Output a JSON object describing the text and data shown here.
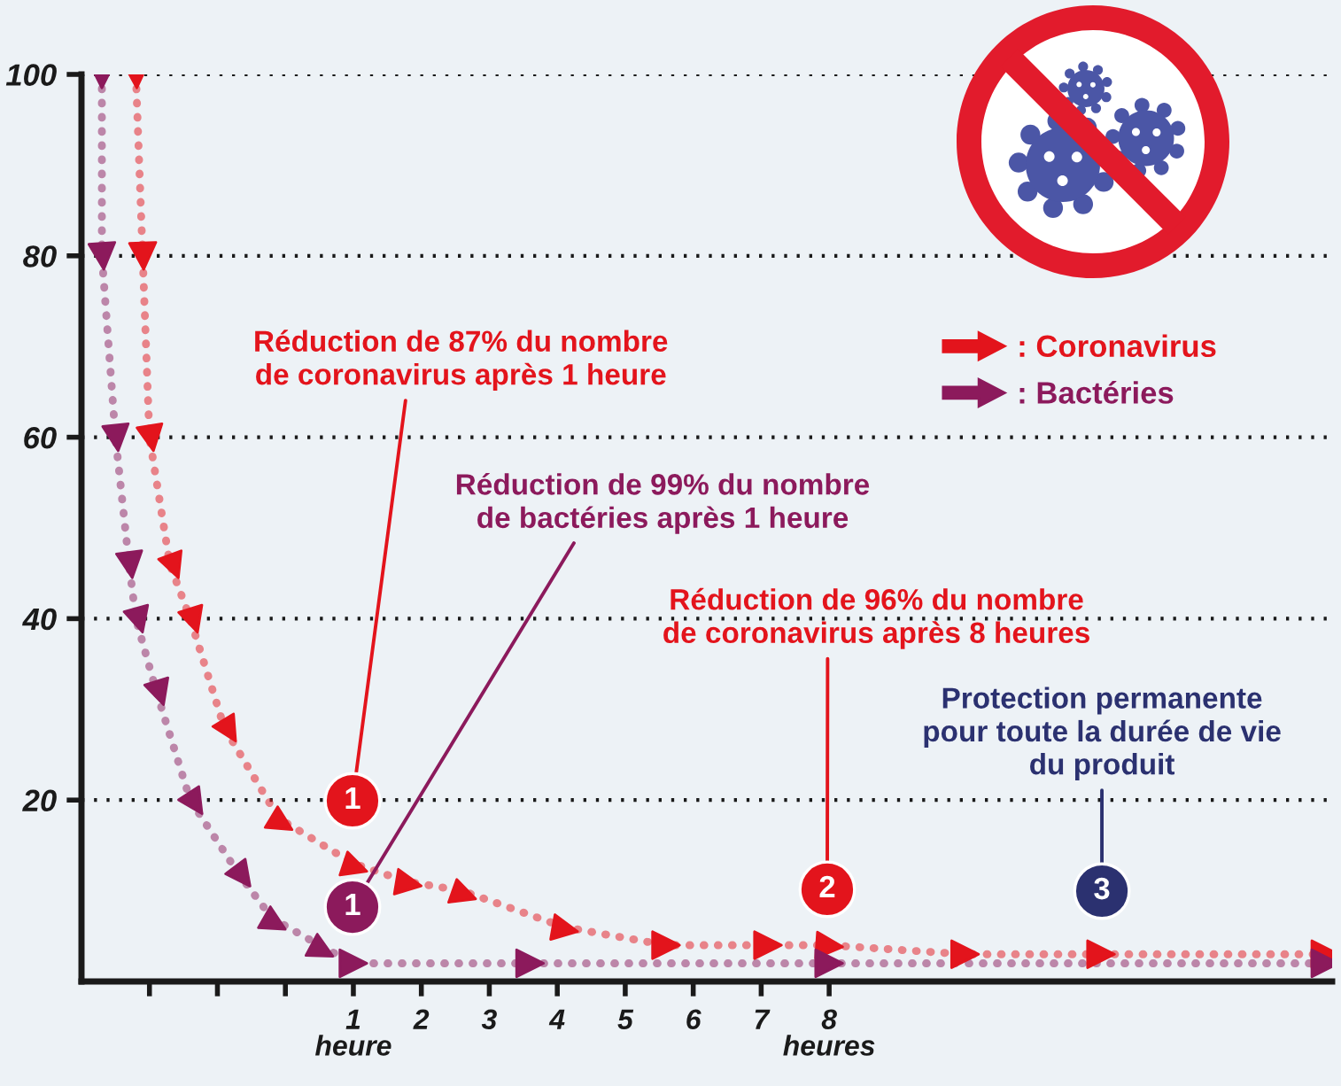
{
  "chart_data": {
    "type": "line",
    "series": [
      {
        "name": ": Coronavirus",
        "color": "#e3141c",
        "x": [
          -2.2,
          -2.1,
          -2.0,
          -1.7,
          -1.4,
          -0.9,
          -0.1,
          1,
          1.8,
          2.6,
          4.1,
          5.6,
          7.1,
          8,
          10,
          12,
          15.3
        ],
        "values": [
          100,
          80,
          60,
          46,
          40,
          28,
          18,
          13,
          11,
          10,
          6,
          4,
          4,
          4,
          3,
          3,
          3
        ]
      },
      {
        "name": ": Bactéries",
        "color": "#8c1a5c",
        "x": [
          -2.7,
          -2.7,
          -2.5,
          -2.3,
          -2.2,
          -1.9,
          -1.4,
          -0.7,
          -0.2,
          0.5,
          1,
          3.6,
          8,
          15.3
        ],
        "values": [
          100,
          80,
          60,
          46,
          40,
          32,
          20,
          12,
          7,
          4,
          2,
          2,
          2,
          2
        ]
      }
    ],
    "xlim": [
      -3,
      15.4
    ],
    "xticks": [
      {
        "value": -2,
        "label": null
      },
      {
        "value": -1,
        "label": null
      },
      {
        "value": 0,
        "label": null
      },
      {
        "value": 1,
        "label": "1\nheure"
      },
      2,
      3,
      4,
      5,
      6,
      7,
      {
        "value": 8,
        "label": "8\nheures"
      }
    ],
    "ylim": [
      0,
      100
    ],
    "yticks": [
      20,
      40,
      60,
      80,
      100
    ],
    "grid": "y",
    "legend": "top right",
    "marker": "triangle",
    "line_style": "dotted",
    "annotations": [
      "Réduction de 87% du nombre\nde coronavirus après 1 heure",
      "1",
      "Réduction de 99% du nombre\nde bactéries après 1 heure",
      "1",
      "Réduction de 96% du nombre\nde coronavirus après 8 heures",
      "2",
      "Protection permanente\npour toute la durée de vie\ndu produit",
      "3"
    ]
  }
}
